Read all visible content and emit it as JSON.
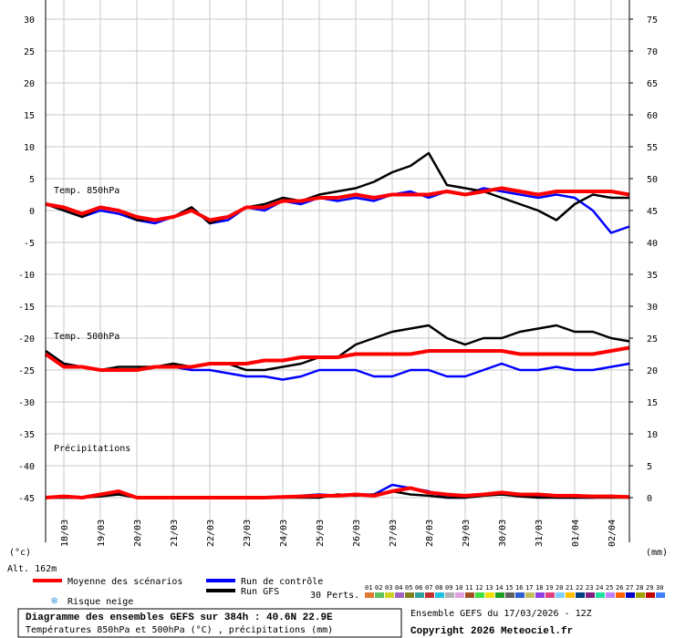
{
  "chart_data": {
    "type": "line",
    "title": "Diagramme des ensembles GEFS sur 384h : 40.6N 22.9E",
    "subtitle": "Températures 850hPa et 500hPa (°C) , précipitations (mm)",
    "run_label": "Ensemble GEFS du 17/03/2026 - 12Z",
    "copyright": "Copyright 2026 Meteociel.fr",
    "altitude": "Alt. 162m",
    "snow_label": "Risque neige",
    "y_unit": "(°c)",
    "y2_unit": "(mm)",
    "panel_labels": [
      "Temp. 850hPa",
      "Temp. 500hPa",
      "Précipitations"
    ],
    "grid": true,
    "categories": [
      null,
      "18/03",
      null,
      "19/03",
      null,
      "20/03",
      null,
      "21/03",
      null,
      "22/03",
      null,
      "23/03",
      null,
      "24/03",
      null,
      "25/03",
      null,
      "26/03",
      null,
      "27/03",
      null,
      "28/03",
      null,
      "29/03",
      null,
      "30/03",
      null,
      "31/03",
      null,
      "01/04",
      null,
      "02/04",
      null
    ],
    "ylim": [
      -52,
      33
    ],
    "yticks": [
      -45,
      -40,
      -35,
      -30,
      -25,
      -20,
      -15,
      -10,
      -5,
      0,
      5,
      10,
      15,
      20,
      25,
      30
    ],
    "y2lim": [
      -7,
      78
    ],
    "y2ticks": [
      0,
      5,
      10,
      15,
      20,
      25,
      30,
      35,
      40,
      45,
      50,
      55,
      60,
      65,
      70,
      75
    ],
    "series": [
      {
        "name": "Run de contrôle",
        "color": "#0000ff",
        "values": [
          1,
          0,
          -1,
          0,
          -0.5,
          -1.5,
          -2,
          -1,
          0.5,
          -2,
          -1.5,
          0.5,
          0,
          1.5,
          1,
          2,
          1.5,
          2,
          1.5,
          2.5,
          3,
          2,
          3,
          2.5,
          3.5,
          3,
          2.5,
          2,
          2.5,
          2,
          0,
          -3.5,
          -2.5
        ],
        "values_500": [
          -22,
          -24,
          -24.5,
          -25,
          -25,
          -25,
          -24.5,
          -24.5,
          -25,
          -25,
          -25.5,
          -26,
          -26,
          -26.5,
          -26,
          -25,
          -25,
          -25,
          -26,
          -26,
          -25,
          -25,
          -26,
          -26,
          -25,
          -24,
          -25,
          -25,
          -24.5,
          -25,
          -25,
          -24.5,
          -24
        ],
        "values_precip": [
          0,
          0,
          0,
          0.3,
          0.8,
          0,
          0,
          0,
          0,
          0,
          0,
          0,
          0,
          0,
          0.3,
          0.5,
          0.3,
          0.5,
          0.5,
          2,
          1.5,
          1,
          0,
          0,
          0.5,
          0.5,
          0.3,
          0.3,
          0,
          0,
          0,
          0.3,
          0
        ]
      },
      {
        "name": "Run GFS",
        "color": "#000000",
        "values": [
          1,
          0,
          -1,
          0.5,
          0,
          -1.5,
          -1.5,
          -1,
          0.5,
          -2,
          -1,
          0.5,
          1,
          2,
          1.5,
          2.5,
          3,
          3.5,
          4.5,
          6,
          7,
          9,
          4,
          3.5,
          3,
          2,
          1,
          0,
          -1.5,
          1,
          2.5,
          2,
          2
        ],
        "values_500": [
          -22,
          -24,
          -24.5,
          -25,
          -24.5,
          -24.5,
          -24.5,
          -24,
          -24.5,
          -24,
          -24,
          -25,
          -25,
          -24.5,
          -24,
          -23,
          -23,
          -21,
          -20,
          -19,
          -18.5,
          -18,
          -20,
          -21,
          -20,
          -20,
          -19,
          -18.5,
          -18,
          -19,
          -19,
          -20,
          -20.5
        ],
        "values_precip": [
          0,
          0,
          0,
          0.2,
          0.5,
          0,
          0,
          0,
          0,
          0,
          0,
          0,
          0,
          0,
          0,
          0,
          0.5,
          0.3,
          0.5,
          1,
          0.5,
          0.3,
          0,
          0,
          0.3,
          0.5,
          0.2,
          0,
          0,
          0,
          0,
          0,
          0
        ]
      },
      {
        "name": "Moyenne des scénarios",
        "color": "#ff0000",
        "values": [
          1,
          0.5,
          -0.5,
          0.5,
          0,
          -1,
          -1.5,
          -1,
          0,
          -1.5,
          -1,
          0.5,
          0.5,
          1.5,
          1.5,
          2,
          2,
          2.5,
          2,
          2.5,
          2.5,
          2.5,
          3,
          2.5,
          3,
          3.5,
          3,
          2.5,
          3,
          3,
          3,
          3,
          2.5
        ],
        "values_500": [
          -22.5,
          -24.5,
          -24.5,
          -25,
          -25,
          -25,
          -24.5,
          -24.5,
          -24.5,
          -24,
          -24,
          -24,
          -23.5,
          -23.5,
          -23,
          -23,
          -23,
          -22.5,
          -22.5,
          -22.5,
          -22.5,
          -22,
          -22,
          -22,
          -22,
          -22,
          -22.5,
          -22.5,
          -22.5,
          -22.5,
          -22.5,
          -22,
          -21.5
        ],
        "values_precip": [
          0,
          0.2,
          0,
          0.5,
          1,
          0,
          0,
          0,
          0,
          0,
          0,
          0,
          0,
          0.1,
          0.2,
          0.3,
          0.3,
          0.5,
          0.3,
          1,
          1.5,
          0.8,
          0.5,
          0.3,
          0.5,
          0.8,
          0.5,
          0.5,
          0.3,
          0.3,
          0.2,
          0.2,
          0.1
        ]
      }
    ],
    "perturbations": {
      "label": "30 Perts.",
      "names": [
        "01",
        "02",
        "03",
        "04",
        "05",
        "06",
        "07",
        "08",
        "09",
        "10",
        "11",
        "12",
        "13",
        "14",
        "15",
        "16",
        "17",
        "18",
        "19",
        "20",
        "21",
        "22",
        "23",
        "24",
        "25",
        "26",
        "27",
        "28",
        "29",
        "30"
      ],
      "colors": [
        "#e07a30",
        "#60c060",
        "#d0d020",
        "#a060c0",
        "#808020",
        "#30a0a0",
        "#c03030",
        "#20c0e0",
        "#b0b0b0",
        "#e0a0e0",
        "#a05020",
        "#40e040",
        "#f0e000",
        "#20a020",
        "#606060",
        "#3060d0",
        "#c0c060",
        "#9040e0",
        "#e04080",
        "#80d0ff",
        "#ffc000",
        "#004080",
        "#802080",
        "#20e0a0",
        "#c080ff",
        "#ff6000",
        "#0000c0",
        "#a0a000",
        "#c00000",
        "#4080ff"
      ]
    }
  }
}
